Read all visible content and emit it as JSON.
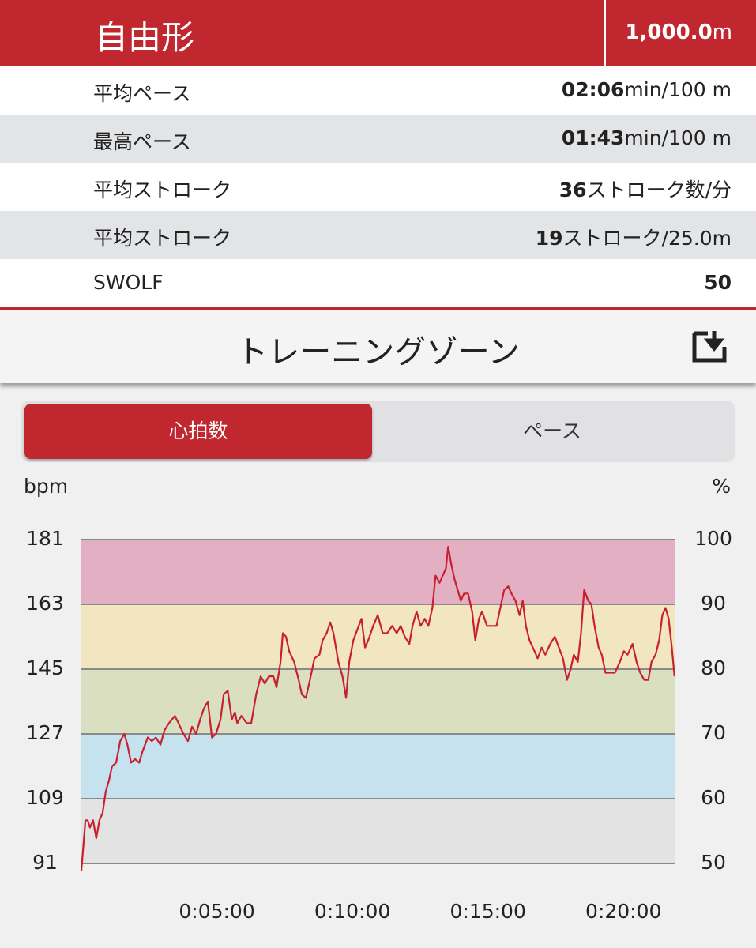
{
  "header": {
    "title": "自由形",
    "distance_value": "1,000.0",
    "distance_unit": "m"
  },
  "stats": [
    {
      "label": "平均ペース",
      "value": "02:06",
      "unit": "min/100 m"
    },
    {
      "label": "最高ペース",
      "value": "01:43",
      "unit": "min/100 m"
    },
    {
      "label": "平均ストローク",
      "value": "36",
      "unit": "ストローク数/分"
    },
    {
      "label": "平均ストローク",
      "value": "19",
      "unit": "ストローク/25.0m"
    },
    {
      "label": "SWOLF",
      "value": "50"
    }
  ],
  "section": {
    "title": "トレーニングゾーン"
  },
  "tabs": [
    {
      "label": "心拍数",
      "active": true
    },
    {
      "label": "ペース",
      "active": false
    }
  ],
  "chart_data": {
    "type": "line",
    "y_label": "bpm",
    "y2_label": "%",
    "ylim": [
      91,
      181
    ],
    "yticks": [
      91,
      109,
      127,
      145,
      163,
      181
    ],
    "y2lim": [
      50,
      100
    ],
    "y2ticks": [
      50,
      60,
      70,
      80,
      90,
      100
    ],
    "xlim": [
      0,
      1315
    ],
    "xticks": [
      {
        "value": 300,
        "label": "0:05:00"
      },
      {
        "value": 600,
        "label": "0:10:00"
      },
      {
        "value": 900,
        "label": "0:15:00"
      },
      {
        "value": 1200,
        "label": "0:20:00"
      }
    ],
    "zones": [
      {
        "from": 91,
        "to": 109,
        "color": "#e3e3e3"
      },
      {
        "from": 109,
        "to": 127,
        "color": "#c6e2ee"
      },
      {
        "from": 127,
        "to": 145,
        "color": "#dbdfc1"
      },
      {
        "from": 145,
        "to": 163,
        "color": "#f1e6c0"
      },
      {
        "from": 163,
        "to": 181,
        "color": "#e3b0c3"
      }
    ],
    "grid": true,
    "x": [
      0,
      9,
      14,
      19,
      26,
      33,
      40,
      47,
      54,
      61,
      68,
      77,
      86,
      95,
      102,
      110,
      119,
      128,
      135,
      147,
      156,
      165,
      175,
      184,
      194,
      207,
      215,
      226,
      236,
      245,
      254,
      263,
      271,
      280,
      289,
      298,
      308,
      315,
      324,
      333,
      340,
      345,
      354,
      366,
      376,
      387,
      397,
      406,
      415,
      425,
      432,
      441,
      446,
      453,
      460,
      471,
      481,
      488,
      497,
      506,
      516,
      527,
      534,
      543,
      551,
      558,
      569,
      578,
      586,
      593,
      602,
      611,
      620,
      628,
      635,
      646,
      656,
      667,
      677,
      688,
      698,
      707,
      716,
      726,
      733,
      742,
      751,
      760,
      768,
      777,
      784,
      793,
      800,
      807,
      812,
      819,
      826,
      833,
      840,
      847,
      856,
      865,
      872,
      880,
      887,
      898,
      908,
      919,
      929,
      936,
      945,
      952,
      961,
      970,
      977,
      984,
      992,
      1003,
      1010,
      1019,
      1027,
      1038,
      1048,
      1057,
      1066,
      1075,
      1083,
      1090,
      1099,
      1106,
      1113,
      1122,
      1129,
      1136,
      1145,
      1152,
      1160,
      1171,
      1181,
      1192,
      1201,
      1209,
      1220,
      1229,
      1237,
      1246,
      1255,
      1262,
      1271,
      1279,
      1286,
      1293,
      1300,
      1307,
      1313
    ],
    "series": [
      {
        "name": "心拍数",
        "color": "#c8202f",
        "values": [
          89,
          103,
          103,
          101,
          103,
          98,
          103,
          105,
          111,
          114,
          118,
          119,
          125,
          127,
          124,
          119,
          120,
          119,
          122,
          126,
          125,
          126,
          124,
          128,
          130,
          132,
          130,
          127,
          125,
          129,
          127,
          131,
          134,
          136,
          126,
          127,
          131,
          138,
          139,
          131,
          133,
          130,
          132,
          130,
          130,
          138,
          143,
          141,
          143,
          143,
          140,
          147,
          155,
          154,
          150,
          147,
          142,
          138,
          137,
          142,
          148,
          149,
          153,
          155,
          158,
          155,
          147,
          143,
          137,
          147,
          153,
          156,
          159,
          151,
          153,
          157,
          160,
          155,
          155,
          157,
          155,
          157,
          154,
          152,
          157,
          161,
          157,
          159,
          157,
          162,
          171,
          169,
          171,
          173,
          179,
          174,
          170,
          167,
          164,
          166,
          166,
          161,
          153,
          159,
          161,
          157,
          157,
          157,
          163,
          167,
          168,
          166,
          164,
          160,
          164,
          157,
          153,
          150,
          148,
          151,
          149,
          152,
          154,
          151,
          148,
          142,
          145,
          149,
          147,
          155,
          167,
          164,
          163,
          157,
          151,
          149,
          144,
          144,
          144,
          147,
          150,
          149,
          152,
          147,
          144,
          142,
          142,
          147,
          149,
          153,
          160,
          162,
          159,
          151,
          143
        ]
      }
    ]
  }
}
